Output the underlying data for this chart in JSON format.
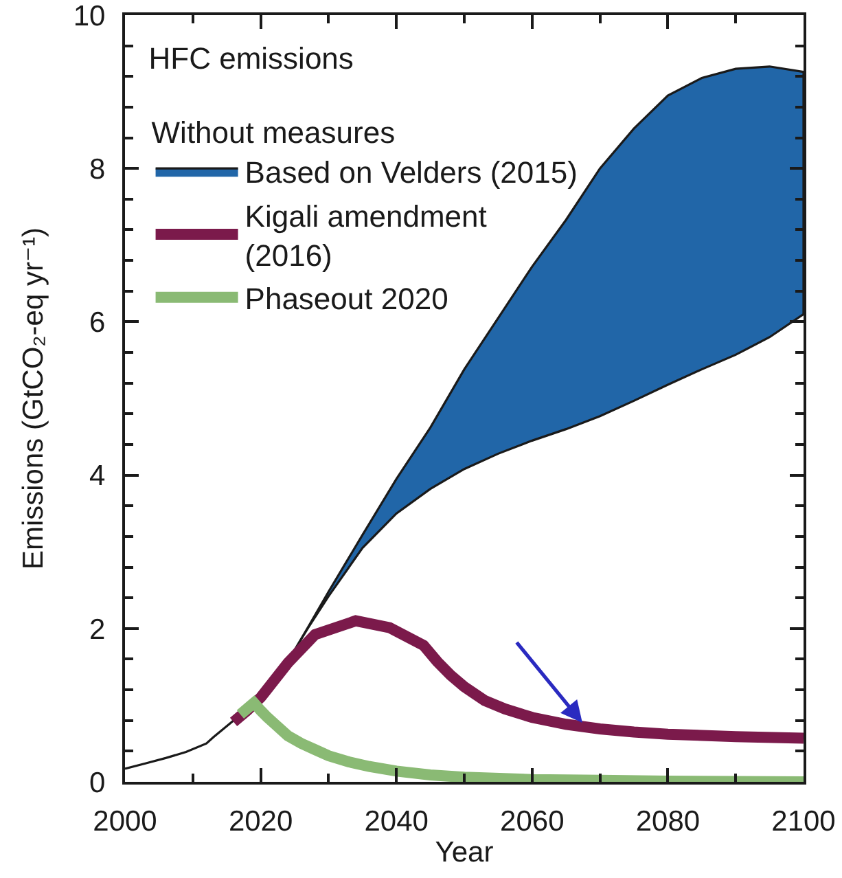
{
  "chart_data": {
    "type": "line",
    "title": "HFC emissions",
    "xlabel": "Year",
    "ylabel": "Emissions (GtCO₂-eq yr⁻¹)",
    "legend_title": "Without measures",
    "legend": "top left",
    "xlim": [
      2000,
      2100
    ],
    "xticks": [
      2000,
      {
        "value": 2010,
        "label": null
      },
      2020,
      {
        "value": 2030,
        "label": null
      },
      2040,
      {
        "value": 2050,
        "label": null
      },
      2060,
      {
        "value": 2070,
        "label": null
      },
      2080,
      {
        "value": 2090,
        "label": null
      },
      2100
    ],
    "ylim": [
      0,
      10
    ],
    "yticks": [
      0,
      {
        "value": 0.4,
        "label": null
      },
      {
        "value": 0.8,
        "label": null
      },
      {
        "value": 1.2,
        "label": null
      },
      {
        "value": 1.6,
        "label": null
      },
      2,
      {
        "value": 2.4,
        "label": null
      },
      {
        "value": 2.8,
        "label": null
      },
      {
        "value": 3.2,
        "label": null
      },
      {
        "value": 3.6,
        "label": null
      },
      4,
      {
        "value": 4.4,
        "label": null
      },
      {
        "value": 4.8,
        "label": null
      },
      {
        "value": 5.2,
        "label": null
      },
      {
        "value": 5.6,
        "label": null
      },
      6,
      {
        "value": 6.4,
        "label": null
      },
      {
        "value": 6.8,
        "label": null
      },
      {
        "value": 7.2,
        "label": null
      },
      {
        "value": 7.6,
        "label": null
      },
      8,
      {
        "value": 8.4,
        "label": null
      },
      {
        "value": 8.8,
        "label": null
      },
      {
        "value": 9.2,
        "label": null
      },
      {
        "value": 9.6,
        "label": null
      },
      10
    ],
    "series": [
      {
        "name": "Based on Velders (2015)",
        "type": "area",
        "color": "#2166a8",
        "x": [
          2019,
          2020,
          2022,
          2025,
          2027,
          2030,
          2035,
          2040,
          2045,
          2050,
          2055,
          2060,
          2065,
          2070,
          2075,
          2080,
          2085,
          2090,
          2095,
          2100
        ],
        "values": [
          null,
          null,
          null,
          null,
          null,
          null,
          null,
          null,
          null,
          null,
          null,
          null,
          null,
          null,
          null,
          null,
          null,
          null,
          null,
          null
        ],
        "upper": [
          1.03,
          1.12,
          1.38,
          1.72,
          2.02,
          2.48,
          3.22,
          3.95,
          4.62,
          5.38,
          6.05,
          6.72,
          7.33,
          8.0,
          8.52,
          8.95,
          9.18,
          9.3,
          9.33,
          9.26
        ],
        "lower": [
          1.03,
          1.12,
          1.38,
          1.72,
          2.01,
          2.42,
          3.05,
          3.5,
          3.82,
          4.08,
          4.28,
          4.45,
          4.6,
          4.77,
          4.97,
          5.18,
          5.38,
          5.57,
          5.8,
          6.1
        ]
      },
      {
        "color": "#1a1a1a",
        "x": [
          2000,
          2003,
          2006,
          2009,
          2012,
          2013,
          2016,
          2018,
          2019
        ],
        "values": [
          0.17,
          0.24,
          0.31,
          0.39,
          0.5,
          0.58,
          0.8,
          0.93,
          1.03
        ]
      },
      {
        "name": "Kigali amendment\n(2016)",
        "color": "#7b1a4b",
        "x": [
          2016,
          2018,
          2020,
          2024,
          2028,
          2034,
          2039,
          2044,
          2046,
          2048,
          2050,
          2053,
          2056,
          2060,
          2065,
          2070,
          2075,
          2080,
          2090,
          2100
        ],
        "values": [
          0.78,
          0.93,
          1.1,
          1.55,
          1.92,
          2.1,
          2.01,
          1.78,
          1.57,
          1.39,
          1.24,
          1.06,
          0.95,
          0.84,
          0.75,
          0.69,
          0.65,
          0.62,
          0.59,
          0.57
        ]
      },
      {
        "name": "Phaseout 2020",
        "color": "#8aba74",
        "x": [
          2017,
          2019,
          2020,
          2021,
          2022,
          2024,
          2026,
          2028,
          2030,
          2033,
          2036,
          2040,
          2045,
          2050,
          2060,
          2070,
          2080,
          2100
        ],
        "values": [
          0.88,
          1.03,
          0.93,
          0.84,
          0.76,
          0.6,
          0.5,
          0.42,
          0.34,
          0.26,
          0.2,
          0.14,
          0.09,
          0.06,
          0.03,
          0.02,
          0.01,
          0.0
        ]
      }
    ]
  }
}
